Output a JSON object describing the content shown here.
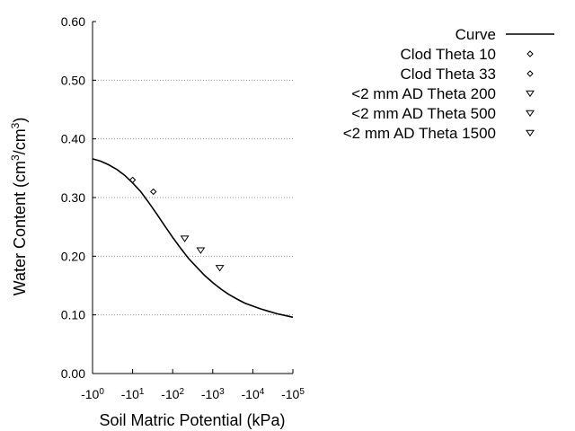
{
  "chart_data": {
    "type": "scatter",
    "xlabel": "Soil Matric Potential (kPa)",
    "ylabel": "Water Content (cm3/cm3)",
    "ylabel_parts": [
      "Water Content (cm",
      "3",
      "/cm",
      "3",
      ")"
    ],
    "x_scale": "log (negative)",
    "xlim": [
      -1,
      -100000
    ],
    "ylim": [
      0.0,
      0.6
    ],
    "grid": "horizontal dotted",
    "legend_position": "top-right, outside plot",
    "yticks": [
      {
        "value": 0.0,
        "label": "0.00"
      },
      {
        "value": 0.1,
        "label": "0.10"
      },
      {
        "value": 0.2,
        "label": "0.20"
      },
      {
        "value": 0.3,
        "label": "0.30"
      },
      {
        "value": 0.4,
        "label": "0.40"
      },
      {
        "value": 0.5,
        "label": "0.50"
      },
      {
        "value": 0.6,
        "label": "0.60"
      }
    ],
    "xticks": [
      {
        "value": -1,
        "base": "-10",
        "exp": "0"
      },
      {
        "value": -10,
        "base": "-10",
        "exp": "1"
      },
      {
        "value": -100,
        "base": "-10",
        "exp": "2"
      },
      {
        "value": -1000,
        "base": "-10",
        "exp": "3"
      },
      {
        "value": -10000,
        "base": "-10",
        "exp": "4"
      },
      {
        "value": -100000,
        "base": "-10",
        "exp": "5"
      }
    ],
    "series": [
      {
        "name": "Curve",
        "kind": "line",
        "points": [
          [
            -1,
            0.366
          ],
          [
            -1.6,
            0.362
          ],
          [
            -2.5,
            0.356
          ],
          [
            -4,
            0.348
          ],
          [
            -6.3,
            0.338
          ],
          [
            -10,
            0.325
          ],
          [
            -16,
            0.31
          ],
          [
            -25,
            0.292
          ],
          [
            -40,
            0.272
          ],
          [
            -63,
            0.252
          ],
          [
            -100,
            0.232
          ],
          [
            -160,
            0.213
          ],
          [
            -250,
            0.196
          ],
          [
            -400,
            0.181
          ],
          [
            -630,
            0.167
          ],
          [
            -1000,
            0.155
          ],
          [
            -1600,
            0.144
          ],
          [
            -2500,
            0.135
          ],
          [
            -4000,
            0.127
          ],
          [
            -6300,
            0.12
          ],
          [
            -10000,
            0.115
          ],
          [
            -16000,
            0.11
          ],
          [
            -25000,
            0.106
          ],
          [
            -40000,
            0.102
          ],
          [
            -63000,
            0.099
          ],
          [
            -100000,
            0.096
          ]
        ]
      },
      {
        "name": "Clod Theta 10",
        "kind": "diamond",
        "points": [
          [
            -10,
            0.33
          ]
        ]
      },
      {
        "name": "Clod Theta 33",
        "kind": "diamond",
        "points": [
          [
            -33,
            0.31
          ]
        ]
      },
      {
        "name": "<2 mm AD Theta 200",
        "kind": "triangle-down",
        "points": [
          [
            -200,
            0.23
          ]
        ]
      },
      {
        "name": "<2 mm AD Theta 500",
        "kind": "triangle-down",
        "points": [
          [
            -500,
            0.21
          ]
        ]
      },
      {
        "name": "<2 mm AD Theta 1500",
        "kind": "triangle-down",
        "points": [
          [
            -1500,
            0.18
          ]
        ]
      }
    ]
  }
}
